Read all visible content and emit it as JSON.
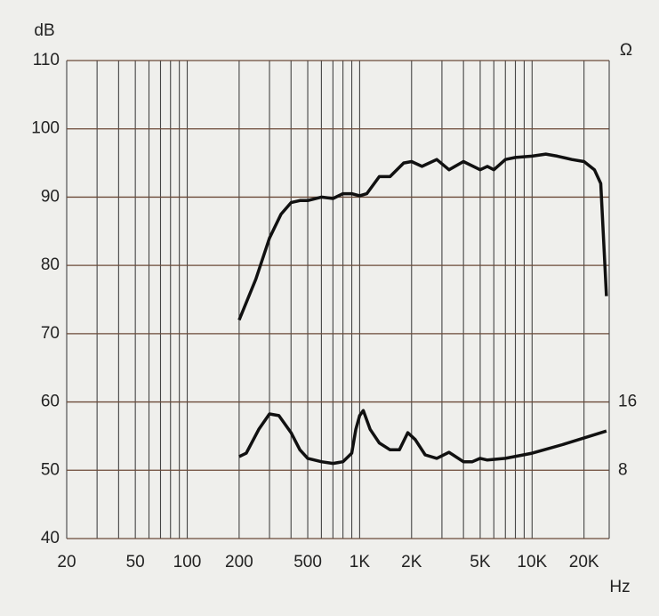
{
  "chart_data": {
    "type": "line",
    "y_label": "dB",
    "y2_label": "Ω",
    "x_label": "Hz",
    "xscale": "log",
    "xlim": [
      20,
      28000
    ],
    "xticks": [
      20,
      50,
      100,
      200,
      500,
      {
        "value": 1000,
        "label": "1K"
      },
      {
        "value": 2000,
        "label": "2K"
      },
      {
        "value": 5000,
        "label": "5K"
      },
      {
        "value": 10000,
        "label": "10K"
      },
      {
        "value": 20000,
        "label": "20K"
      }
    ],
    "xgrid": [
      20,
      30,
      40,
      50,
      60,
      70,
      80,
      90,
      100,
      200,
      300,
      400,
      500,
      600,
      700,
      800,
      900,
      1000,
      2000,
      3000,
      4000,
      5000,
      6000,
      7000,
      8000,
      9000,
      10000,
      20000
    ],
    "ylim": [
      40,
      110
    ],
    "yticks": [
      40,
      50,
      60,
      70,
      80,
      90,
      100,
      110
    ],
    "y2lim": [
      0,
      56
    ],
    "y2ticks": [
      8,
      16
    ],
    "grid": true,
    "series": [
      {
        "color": "#111111",
        "x": [
          200,
          250,
          300,
          350,
          400,
          450,
          500,
          600,
          700,
          800,
          900,
          1000,
          1100,
          1300,
          1500,
          1800,
          2000,
          2300,
          2800,
          3300,
          4000,
          5000,
          5500,
          6000,
          7000,
          8000,
          10000,
          12000,
          14000,
          17000,
          20000,
          23000,
          25000,
          27000
        ],
        "values": [
          72,
          78,
          84,
          87.5,
          89.2,
          89.5,
          89.5,
          90,
          89.8,
          90.5,
          90.5,
          90.2,
          90.5,
          93,
          93,
          95,
          95.2,
          94.5,
          95.5,
          94,
          95.2,
          94,
          94.5,
          94,
          95.5,
          95.8,
          96,
          96.3,
          96,
          95.5,
          95.2,
          94,
          92,
          75.5
        ]
      },
      {
        "color": "#111111",
        "axis": "y2",
        "x": [
          200,
          220,
          260,
          300,
          340,
          400,
          450,
          500,
          600,
          700,
          800,
          900,
          950,
          1000,
          1050,
          1150,
          1300,
          1500,
          1700,
          1900,
          2100,
          2400,
          2800,
          3300,
          4000,
          4500,
          5000,
          5500,
          7000,
          10000,
          15000,
          27000
        ],
        "values": [
          9.6,
          10,
          12.8,
          14.6,
          14.4,
          12.4,
          10.4,
          9.4,
          9,
          8.8,
          9,
          10,
          12.8,
          14.4,
          15,
          12.8,
          11.2,
          10.4,
          10.4,
          12.4,
          11.6,
          9.8,
          9.4,
          10.1,
          9,
          9,
          9.4,
          9.2,
          9.4,
          10,
          11,
          12.6
        ]
      }
    ]
  }
}
